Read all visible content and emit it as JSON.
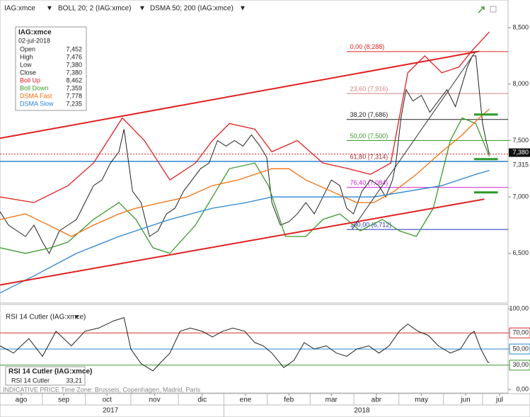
{
  "toolbar": {
    "symbol": "IAG:xmce",
    "boll": "BOLL 20; 2 (IAG:xmce)",
    "dsma": "DSMA 50; 200 (IAG:xmce)"
  },
  "info_box": {
    "title": "IAG:xmce",
    "date": "02-jul-2018",
    "rows": [
      {
        "label": "Open",
        "value": "7,452"
      },
      {
        "label": "High",
        "value": "7,476"
      },
      {
        "label": "Low",
        "value": "7,380"
      },
      {
        "label": "Close",
        "value": "7,380"
      },
      {
        "label": "Boll Up",
        "value": "8,462"
      },
      {
        "label": "Boll Down",
        "value": "7,359"
      },
      {
        "label": "DSMA Fast",
        "value": "7,778"
      },
      {
        "label": "DSMA Slow",
        "value": "7,235"
      }
    ]
  },
  "rsi_box": {
    "title": "RSI 14 Cutler (IAG:xmce)",
    "label": "RSI 14 Cutler",
    "value": "33,21"
  },
  "footer": "INDICATIVE PRICE  Time Zone: Brussels, Copenhagen, Madrid, Paris",
  "time_axis": {
    "xlim": [
      0,
      299
    ],
    "xticks": [
      {
        "value": 12.5,
        "label": "ago"
      },
      {
        "value": 37.5,
        "label": "sep"
      },
      {
        "value": 63,
        "label": "oct"
      },
      {
        "value": 91,
        "label": "nov"
      },
      {
        "value": 119,
        "label": "dic"
      },
      {
        "value": 144.5,
        "label": "ene"
      },
      {
        "value": 170,
        "label": "feb"
      },
      {
        "value": 195,
        "label": "mar"
      },
      {
        "value": 221.5,
        "label": "abr"
      },
      {
        "value": 248,
        "label": "may"
      },
      {
        "value": 274,
        "label": "jun"
      },
      {
        "value": 294,
        "label": "jul"
      }
    ],
    "years": [
      {
        "value": 65,
        "label": "2017"
      },
      {
        "value": 213,
        "label": "2018"
      }
    ]
  },
  "chart_data": [
    {
      "type": "line",
      "ylim": [
        6.06,
        8.745
      ],
      "yticks": [
        {
          "value": 8.5,
          "label": "8,500"
        },
        {
          "value": 8.0,
          "label": "8,000"
        },
        {
          "value": 7.5,
          "label": "7,500"
        },
        {
          "value": 7.0,
          "label": "7,000"
        },
        {
          "value": 6.5,
          "label": "6,500"
        }
      ],
      "series": [
        {
          "color": "#222222",
          "x": [
            0,
            5,
            10,
            15,
            20,
            25,
            29,
            35,
            40,
            45,
            50,
            55,
            60,
            65,
            70,
            73,
            78,
            83,
            88,
            93,
            98,
            103,
            108,
            113,
            118,
            123,
            128,
            133,
            138,
            143,
            148,
            153,
            157,
            160,
            165,
            170,
            175,
            180,
            185,
            190,
            195,
            200,
            204,
            208,
            213,
            218,
            223,
            227,
            231,
            233,
            236,
            239,
            243,
            248,
            253,
            258,
            263,
            268,
            272,
            275,
            278,
            280,
            282,
            284,
            286,
            288
          ],
          "values": [
            6.87,
            6.75,
            6.7,
            6.65,
            6.75,
            6.6,
            6.5,
            6.7,
            6.75,
            6.8,
            6.95,
            7.1,
            7.15,
            7.3,
            7.4,
            7.6,
            7.05,
            6.95,
            6.65,
            6.7,
            6.85,
            6.9,
            7.05,
            7.15,
            7.25,
            7.3,
            7.5,
            7.45,
            7.5,
            7.45,
            7.55,
            7.45,
            7.35,
            6.95,
            6.75,
            6.78,
            6.85,
            6.95,
            6.85,
            7.0,
            7.15,
            7.1,
            6.9,
            6.85,
            7.05,
            7.15,
            7.1,
            7.0,
            7.15,
            7.3,
            7.7,
            7.95,
            7.85,
            7.9,
            7.75,
            7.85,
            7.95,
            7.8,
            8.0,
            8.15,
            8.25,
            8.25,
            7.95,
            7.65,
            7.5,
            7.38
          ]
        },
        {
          "color": "#e02020",
          "x": [
            0,
            20,
            40,
            55,
            72,
            85,
            100,
            115,
            125,
            135,
            150,
            160,
            175,
            190,
            205,
            218,
            230,
            240,
            250,
            260,
            270,
            278,
            288
          ],
          "values": [
            7.0,
            6.95,
            7.1,
            7.3,
            7.7,
            7.5,
            7.15,
            7.3,
            7.5,
            7.65,
            7.6,
            7.4,
            7.5,
            7.3,
            7.25,
            7.2,
            7.3,
            8.1,
            8.25,
            8.1,
            8.15,
            8.3,
            8.462
          ]
        },
        {
          "color": "#3a9a2a",
          "x": [
            0,
            15,
            30,
            40,
            55,
            70,
            80,
            90,
            100,
            115,
            125,
            135,
            150,
            158,
            168,
            180,
            190,
            200,
            212,
            225,
            235,
            245,
            255,
            265,
            272,
            280,
            288
          ],
          "values": [
            6.55,
            6.5,
            6.55,
            6.6,
            6.8,
            6.95,
            6.8,
            6.55,
            6.5,
            6.75,
            7.0,
            7.25,
            7.3,
            7.1,
            6.65,
            6.65,
            6.8,
            6.85,
            6.7,
            6.8,
            6.7,
            6.65,
            6.9,
            7.5,
            7.7,
            7.65,
            7.359
          ]
        },
        {
          "color": "#f07010",
          "x": [
            0,
            15,
            30,
            42,
            55,
            70,
            80,
            95,
            110,
            125,
            140,
            160,
            170,
            180,
            195,
            210,
            220,
            232,
            245,
            260,
            272,
            282,
            288
          ],
          "values": [
            6.8,
            6.85,
            6.74,
            6.65,
            6.75,
            6.85,
            6.9,
            6.95,
            7.0,
            7.1,
            7.15,
            7.25,
            7.25,
            7.15,
            7.05,
            6.95,
            6.95,
            7.05,
            7.2,
            7.4,
            7.55,
            7.7,
            7.778
          ]
        },
        {
          "color": "#2e86d0",
          "x": [
            0,
            20,
            45,
            70,
            100,
            125,
            145,
            160,
            175,
            200,
            220,
            240,
            260,
            280,
            288
          ],
          "values": [
            6.15,
            6.3,
            6.5,
            6.65,
            6.8,
            6.9,
            6.95,
            7.0,
            7.0,
            7.0,
            7.0,
            7.05,
            7.1,
            7.2,
            7.235
          ]
        }
      ],
      "trendlines": [
        {
          "color": "#e02020",
          "x": [
            0,
            282
          ],
          "values": [
            7.52,
            8.29
          ]
        },
        {
          "color": "#e02020",
          "x": [
            0,
            285
          ],
          "values": [
            6.22,
            6.98
          ]
        },
        {
          "color": "#333333",
          "x": [
            207,
            280
          ],
          "values": [
            6.71,
            8.29
          ]
        }
      ],
      "fib_levels": [
        {
          "value": 8.288,
          "label": "0,00 (8,288)",
          "color": "#e02020"
        },
        {
          "value": 7.916,
          "label": "23,60 (7,916)",
          "color": "#d08080"
        },
        {
          "value": 7.686,
          "label": "38,20 (7,686)",
          "color": "#222222"
        },
        {
          "value": 7.5,
          "label": "50,00 (7,500)",
          "color": "#3a9a2a"
        },
        {
          "value": 7.314,
          "label": "61,80 (7,314)",
          "color": "#a03030"
        },
        {
          "value": 7.084,
          "label": "76,40 (7,084)",
          "color": "#d020d0"
        },
        {
          "value": 6.712,
          "label": "100,00 (6,712)",
          "color": "#2030c0"
        }
      ],
      "price_tags": [
        {
          "value": 7.38,
          "label": "7,380",
          "color": "#e02020"
        },
        {
          "value": 7.315,
          "label": "7,315",
          "color": "#2e86d0"
        }
      ],
      "markers": [
        7.73,
        7.335,
        7.04
      ]
    },
    {
      "type": "line",
      "title": "RSI 14 Cutler (IAG:xmce)",
      "ylim": [
        -4.4,
        105.3
      ],
      "yticks": [
        {
          "value": 100,
          "label": "100,00"
        },
        {
          "value": 70,
          "label": "70,00",
          "color": "#d03030"
        },
        {
          "value": 50,
          "label": "50,00",
          "color": "#2e86d0"
        },
        {
          "value": 30,
          "label": "30,00",
          "color": "#3a9a2a"
        },
        {
          "value": 0,
          "label": "0,00"
        }
      ],
      "series": [
        {
          "color": "#222222",
          "x": [
            0,
            8,
            17,
            25,
            33,
            42,
            50,
            58,
            67,
            73,
            77,
            83,
            90,
            94,
            100,
            106,
            112,
            119,
            125,
            131,
            137,
            144,
            150,
            155,
            160,
            167,
            173,
            179,
            185,
            192,
            198,
            204,
            210,
            217,
            223,
            229,
            235,
            240,
            246,
            252,
            258,
            265,
            271,
            276,
            279,
            283,
            287,
            288
          ],
          "values": [
            54,
            45,
            63,
            41,
            72,
            54,
            72,
            76,
            85,
            89,
            50,
            32,
            23,
            32,
            45,
            72,
            76,
            72,
            65,
            72,
            76,
            72,
            58,
            54,
            45,
            27,
            36,
            58,
            50,
            54,
            45,
            41,
            50,
            54,
            45,
            54,
            72,
            81,
            72,
            67,
            54,
            45,
            50,
            67,
            72,
            50,
            34,
            33.21
          ]
        }
      ]
    }
  ]
}
